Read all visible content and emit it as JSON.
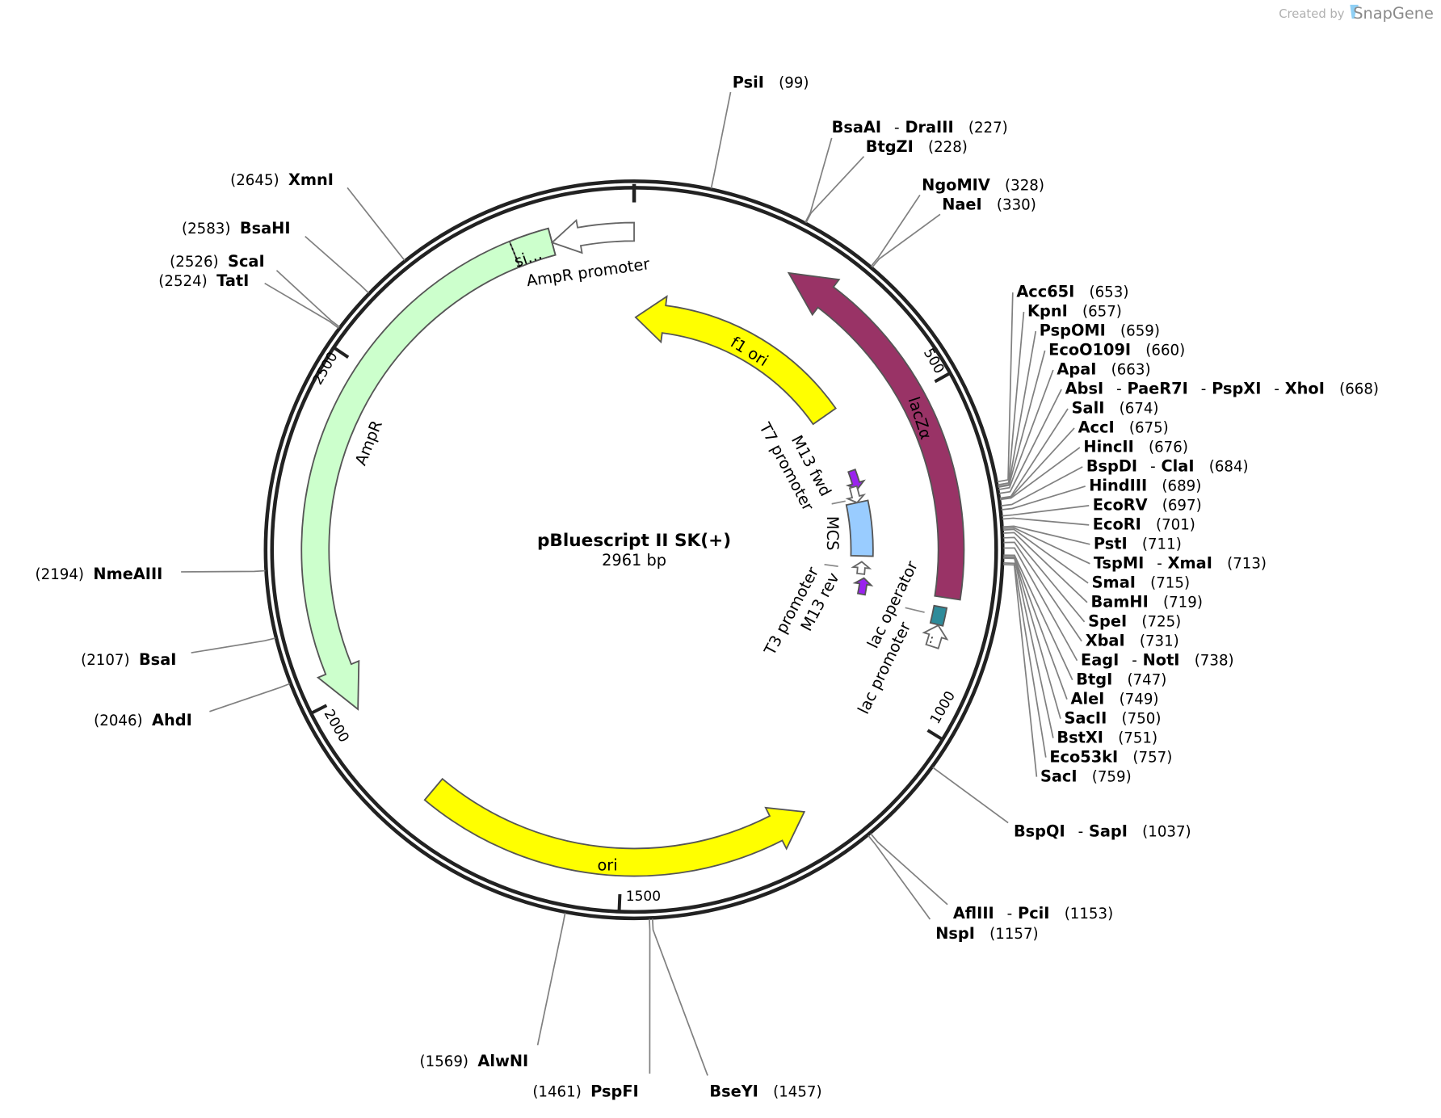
{
  "watermark": {
    "created_by": "Created by",
    "brand": "SnapGene",
    "brand_color": "#4aa3df"
  },
  "plasmid": {
    "name": "pBluescript II SK(+)",
    "size_label": "2961 bp",
    "length_bp": 2961
  },
  "ticks": [
    "500",
    "1000",
    "1500",
    "2000",
    "2500"
  ],
  "features": [
    {
      "name": "lacZα",
      "start": 240,
      "end": 812,
      "direction": "reverse",
      "color": "#993366",
      "label_color": "#ffffff"
    },
    {
      "name": "f1 ori",
      "start": 3,
      "end": 452,
      "direction": "reverse",
      "color": "#ffff00",
      "label_color": "#000000"
    },
    {
      "name": "ori",
      "start": 1209,
      "end": 1809,
      "direction": "reverse",
      "color": "#ffff00",
      "label_color": "#000000"
    },
    {
      "name": "AmpR",
      "start": 1974,
      "end": 2838,
      "direction": "reverse",
      "color": "#ccffcc",
      "label_color": "#000000"
    },
    {
      "name": "si…",
      "start": 2780,
      "end": 2838,
      "direction": "none",
      "color": "#ccffcc",
      "label_color": "#000000"
    },
    {
      "name": "AmpR promoter",
      "start": 2838,
      "end": 2961,
      "direction": "reverse",
      "color": "#ffffff",
      "label_color": "#000000"
    },
    {
      "name": "MCS",
      "start": 642,
      "end": 753,
      "direction": "none",
      "color": "#99ccff",
      "label_color": "#000000"
    },
    {
      "name": "M13 fwd",
      "start": 576,
      "end": 615,
      "direction": "forward",
      "color": "#9a22ee",
      "label_color": "#000000"
    },
    {
      "name": "T7 promoter",
      "start": 609,
      "end": 642,
      "direction": "forward",
      "color": "#ffffff",
      "label_color": "#000000"
    },
    {
      "name": "T3 promoter",
      "start": 765,
      "end": 790,
      "direction": "reverse",
      "color": "#ffffff",
      "label_color": "#000000"
    },
    {
      "name": "M13 rev",
      "start": 798,
      "end": 831,
      "direction": "reverse",
      "color": "#9a22ee",
      "label_color": "#000000"
    },
    {
      "name": "lac operator",
      "start": 827,
      "end": 854,
      "direction": "none",
      "color": "#2e8b9a",
      "label_color": "#000000"
    },
    {
      "name": "lac promoter",
      "start": 855,
      "end": 888,
      "direction": "reverse",
      "color": "#ffffff",
      "label_color": "#000000"
    }
  ],
  "enzymes": [
    {
      "names": [
        "PsiI"
      ],
      "pos": 99
    },
    {
      "names": [
        "BsaAI",
        "DraIII"
      ],
      "pos": 227
    },
    {
      "names": [
        "BtgZI"
      ],
      "pos": 228
    },
    {
      "names": [
        "NgoMIV"
      ],
      "pos": 328
    },
    {
      "names": [
        "NaeI"
      ],
      "pos": 330
    },
    {
      "names": [
        "Acc65I"
      ],
      "pos": 653
    },
    {
      "names": [
        "KpnI"
      ],
      "pos": 657
    },
    {
      "names": [
        "PspOMI"
      ],
      "pos": 659
    },
    {
      "names": [
        "EcoO109I"
      ],
      "pos": 660
    },
    {
      "names": [
        "ApaI"
      ],
      "pos": 663
    },
    {
      "names": [
        "AbsI",
        "PaeR7I",
        "PspXI",
        "XhoI"
      ],
      "pos": 668
    },
    {
      "names": [
        "SalI"
      ],
      "pos": 674
    },
    {
      "names": [
        "AccI"
      ],
      "pos": 675
    },
    {
      "names": [
        "HincII"
      ],
      "pos": 676
    },
    {
      "names": [
        "BspDI",
        "ClaI"
      ],
      "pos": 684
    },
    {
      "names": [
        "HindIII"
      ],
      "pos": 689
    },
    {
      "names": [
        "EcoRV"
      ],
      "pos": 697
    },
    {
      "names": [
        "EcoRI"
      ],
      "pos": 701
    },
    {
      "names": [
        "PstI"
      ],
      "pos": 711
    },
    {
      "names": [
        "TspMI",
        "XmaI"
      ],
      "pos": 713
    },
    {
      "names": [
        "SmaI"
      ],
      "pos": 715
    },
    {
      "names": [
        "BamHI"
      ],
      "pos": 719
    },
    {
      "names": [
        "SpeI"
      ],
      "pos": 725
    },
    {
      "names": [
        "XbaI"
      ],
      "pos": 731
    },
    {
      "names": [
        "EagI",
        "NotI"
      ],
      "pos": 738
    },
    {
      "names": [
        "BtgI"
      ],
      "pos": 747
    },
    {
      "names": [
        "AleI"
      ],
      "pos": 749
    },
    {
      "names": [
        "SacII"
      ],
      "pos": 750
    },
    {
      "names": [
        "BstXI"
      ],
      "pos": 751
    },
    {
      "names": [
        "Eco53kI"
      ],
      "pos": 757
    },
    {
      "names": [
        "SacI"
      ],
      "pos": 759
    },
    {
      "names": [
        "BspQI",
        "SapI"
      ],
      "pos": 1037
    },
    {
      "names": [
        "AflIII",
        "PciI"
      ],
      "pos": 1153
    },
    {
      "names": [
        "NspI"
      ],
      "pos": 1157
    },
    {
      "names": [
        "BseYI"
      ],
      "pos": 1457
    },
    {
      "names": [
        "PspFI"
      ],
      "pos": 1461
    },
    {
      "names": [
        "AlwNI"
      ],
      "pos": 1569
    },
    {
      "names": [
        "AhdI"
      ],
      "pos": 2046
    },
    {
      "names": [
        "BsaI"
      ],
      "pos": 2107
    },
    {
      "names": [
        "NmeAIII"
      ],
      "pos": 2194
    },
    {
      "names": [
        "TatI"
      ],
      "pos": 2524
    },
    {
      "names": [
        "ScaI"
      ],
      "pos": 2526
    },
    {
      "names": [
        "BsaHI"
      ],
      "pos": 2583
    },
    {
      "names": [
        "XmnI"
      ],
      "pos": 2645
    }
  ]
}
